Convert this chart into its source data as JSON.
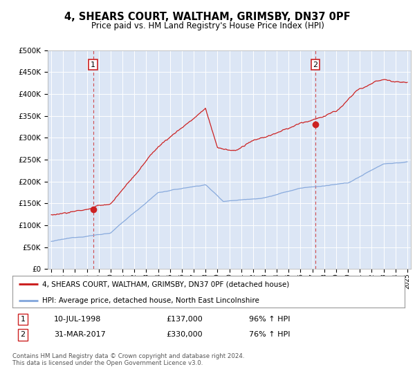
{
  "title": "4, SHEARS COURT, WALTHAM, GRIMSBY, DN37 0PF",
  "subtitle": "Price paid vs. HM Land Registry's House Price Index (HPI)",
  "title_fontsize": 10.5,
  "subtitle_fontsize": 8.5,
  "plot_bg_color": "#dce6f5",
  "red_color": "#cc2222",
  "blue_color": "#88aadd",
  "sale1_year": 1998.53,
  "sale1_price": 137000,
  "sale1_label": "1",
  "sale1_date": "10-JUL-1998",
  "sale1_price_str": "£137,000",
  "sale1_pct": "96% ↑ HPI",
  "sale2_year": 2017.25,
  "sale2_price": 330000,
  "sale2_label": "2",
  "sale2_date": "31-MAR-2017",
  "sale2_price_str": "£330,000",
  "sale2_pct": "76% ↑ HPI",
  "ylim": [
    0,
    500000
  ],
  "xlim_start": 1994.7,
  "xlim_end": 2025.3,
  "legend_line1": "4, SHEARS COURT, WALTHAM, GRIMSBY, DN37 0PF (detached house)",
  "legend_line2": "HPI: Average price, detached house, North East Lincolnshire",
  "footer": "Contains HM Land Registry data © Crown copyright and database right 2024.\nThis data is licensed under the Open Government Licence v3.0."
}
